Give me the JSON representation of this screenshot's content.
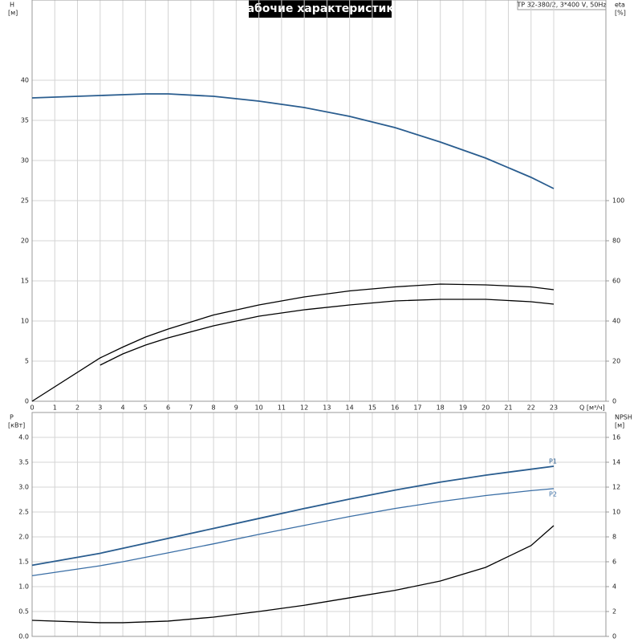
{
  "chart_data": [
    {
      "type": "line",
      "title": "Рабочие характеристики",
      "subtitle": "TP 32-380/2, 3*400 V, 50Hz",
      "ylabel": "H",
      "ylabel_unit": "[м]",
      "y2label": "eta",
      "y2label_unit": "[%]",
      "xlabel": "Q [м³/ч]",
      "x": [
        0,
        3,
        4,
        5,
        6,
        8,
        10,
        12,
        14,
        16,
        18,
        20,
        22,
        23
      ],
      "xlim": [
        0,
        25.3
      ],
      "xticks": [
        0,
        1,
        2,
        3,
        4,
        5,
        6,
        7,
        8,
        9,
        10,
        11,
        12,
        13,
        14,
        15,
        16,
        17,
        18,
        19,
        20,
        21,
        22,
        23
      ],
      "ylim": [
        0,
        50
      ],
      "yticks": [
        0,
        5,
        10,
        15,
        20,
        25,
        30,
        35,
        40
      ],
      "y2lim": [
        0,
        200
      ],
      "y2ticks": [
        0,
        20,
        40,
        60,
        80,
        100
      ],
      "grid": true,
      "series": [
        {
          "color": "#2a5d8f",
          "values": [
            37.8,
            38.1,
            38.2,
            38.3,
            38.3,
            38.0,
            37.4,
            36.6,
            35.5,
            34.1,
            32.3,
            30.3,
            27.9,
            26.5
          ]
        },
        {
          "color": "#000000",
          "axis": "y2",
          "values": [
            0,
            21.6,
            27,
            32,
            36,
            43,
            48,
            52,
            55,
            57,
            58.4,
            58,
            57,
            55.6
          ]
        },
        {
          "color": "#000000",
          "axis": "y2",
          "values": [
            null,
            18,
            23.6,
            28,
            31.6,
            37.6,
            42.4,
            45.6,
            48,
            50,
            50.8,
            50.8,
            49.6,
            48.4
          ]
        }
      ]
    },
    {
      "type": "line",
      "ylabel": "P",
      "ylabel_unit": "[кВт]",
      "y2label": "NPSH",
      "y2label_unit": "[м]",
      "x": [
        0,
        3,
        4,
        6,
        8,
        10,
        12,
        14,
        16,
        18,
        20,
        22,
        23
      ],
      "xlim": [
        0,
        25.3
      ],
      "ylim": [
        0,
        4.5
      ],
      "yticks": [
        {
          "value": 0,
          "label": "0.0"
        },
        {
          "value": 0.5,
          "label": "0.5"
        },
        {
          "value": 1,
          "label": "1.0"
        },
        {
          "value": 1.5,
          "label": "1.5"
        },
        {
          "value": 2,
          "label": "2.0"
        },
        {
          "value": 2.5,
          "label": "2.5"
        },
        {
          "value": 3,
          "label": "3.0"
        },
        {
          "value": 3.5,
          "label": "3.5"
        },
        {
          "value": 4,
          "label": "4.0"
        }
      ],
      "y2lim": [
        0,
        18
      ],
      "y2ticks": [
        0,
        2,
        4,
        6,
        8,
        10,
        12,
        14,
        16
      ],
      "grid": true,
      "series": [
        {
          "name": "P1",
          "color": "#2a5d8f",
          "values": [
            1.43,
            1.67,
            1.77,
            1.97,
            2.17,
            2.37,
            2.57,
            2.76,
            2.94,
            3.1,
            3.24,
            3.36,
            3.42
          ]
        },
        {
          "name": "P2",
          "color": "#3a6ea5",
          "values": [
            1.22,
            1.42,
            1.5,
            1.68,
            1.86,
            2.05,
            2.23,
            2.41,
            2.57,
            2.71,
            2.83,
            2.93,
            2.97
          ]
        },
        {
          "color": "#000000",
          "axis": "y2",
          "values": [
            1.29,
            1.1,
            1.1,
            1.23,
            1.55,
            2.0,
            2.5,
            3.1,
            3.7,
            4.45,
            5.55,
            7.3,
            8.9
          ]
        }
      ]
    }
  ]
}
